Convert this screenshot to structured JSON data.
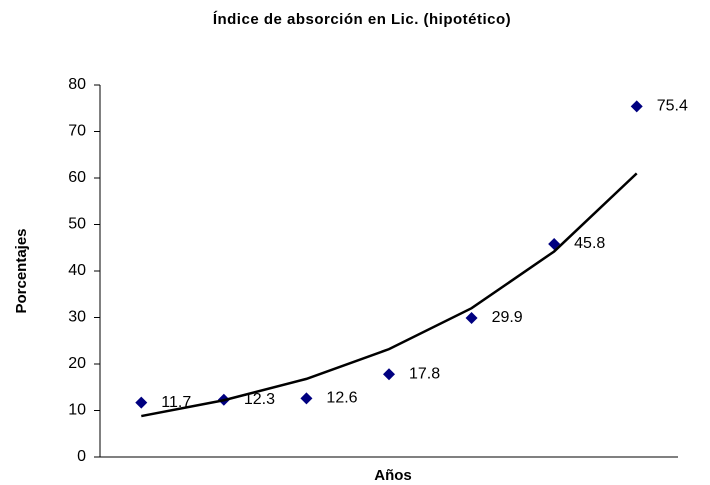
{
  "chart_data": {
    "type": "scatter",
    "title": "Índice de absorción en Lic. (hipotético)",
    "x_label": "Años",
    "y_label": "Porcentajes",
    "categories": [
      null,
      null,
      null,
      null,
      null,
      null,
      null
    ],
    "series": [
      {
        "color": "#000080",
        "values": [
          11.7,
          12.3,
          12.6,
          17.8,
          29.9,
          45.8,
          75.4
        ]
      },
      {
        "color": "#000000",
        "values": [
          8.8,
          12.2,
          16.8,
          23.2,
          32,
          44.2,
          61
        ],
        "line": true
      }
    ],
    "ylim": [
      0,
      80
    ],
    "yticks": [
      0,
      10,
      20,
      30,
      40,
      50,
      60,
      70,
      80
    ]
  }
}
